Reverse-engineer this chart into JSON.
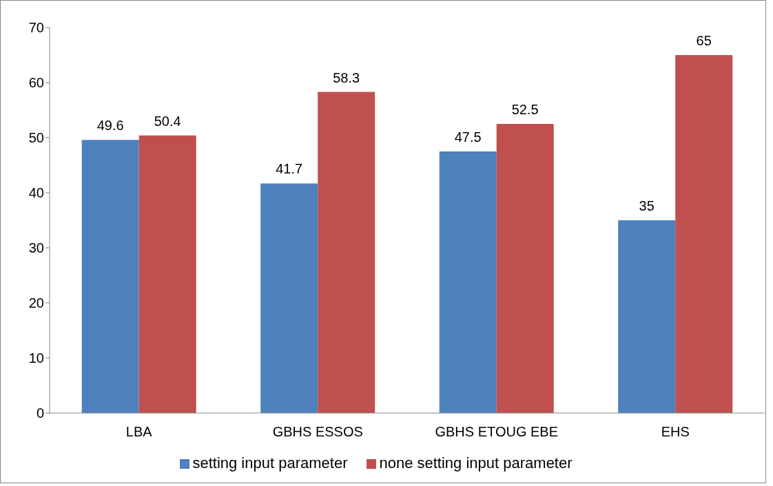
{
  "chart_data": {
    "type": "bar",
    "categories": [
      "LBA",
      "GBHS ESSOS",
      "GBHS ETOUG EBE",
      "EHS"
    ],
    "series": [
      {
        "name": "setting input parameter",
        "color": "#4f81bd",
        "values": [
          49.6,
          41.7,
          47.5,
          35
        ]
      },
      {
        "name": "none setting input parameter",
        "color": "#c0504d",
        "values": [
          50.4,
          58.3,
          52.5,
          65
        ]
      }
    ],
    "ylim": [
      0,
      70
    ],
    "yticks": [
      0,
      10,
      20,
      30,
      40,
      50,
      60,
      70
    ],
    "grid": false,
    "legend": "bottom",
    "data_labels": true
  }
}
